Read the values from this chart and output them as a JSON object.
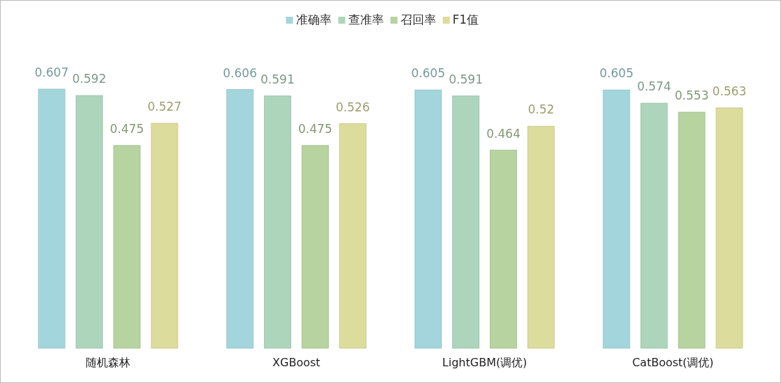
{
  "chart_data": {
    "type": "bar",
    "categories": [
      "随机森林",
      "XGBoost",
      "LightGBM(调优)",
      "CatBoost(调优)"
    ],
    "series": [
      {
        "name": "准确率",
        "color": "#a3d6dc",
        "values": [
          0.607,
          0.606,
          0.605,
          0.605
        ]
      },
      {
        "name": "查准率",
        "color": "#acd5bb",
        "values": [
          0.592,
          0.591,
          0.591,
          0.574
        ]
      },
      {
        "name": "召回率",
        "color": "#b6d3a0",
        "values": [
          0.475,
          0.475,
          0.464,
          0.553
        ]
      },
      {
        "name": "F1值",
        "color": "#dcdc9c",
        "values": [
          0.527,
          0.526,
          0.52,
          0.563
        ]
      }
    ],
    "data_labels": true,
    "legend": "top",
    "grid": false
  }
}
